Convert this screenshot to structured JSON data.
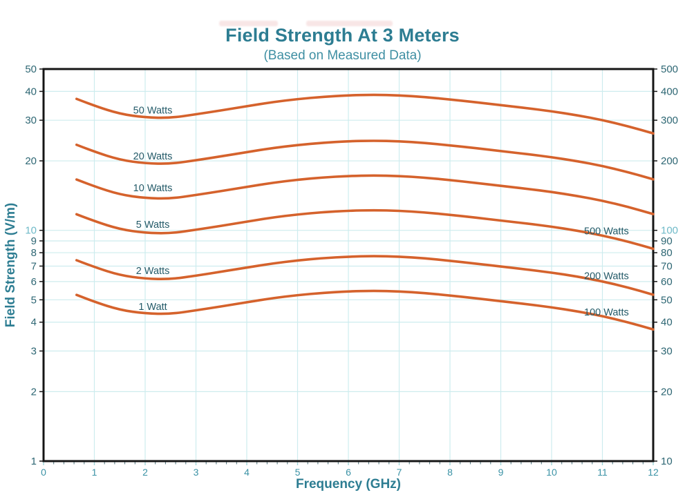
{
  "chart_data": {
    "type": "line",
    "title": "Field Strength At 3 Meters",
    "subtitle": "(Based on Measured Data)",
    "xlabel": "Frequency (GHz)",
    "ylabel": "Field Strength (V/m)",
    "legend_position": "inline-curve-labels",
    "grid": true,
    "x_axis": {
      "min": 0,
      "max": 12,
      "major_ticks": [
        0,
        1,
        2,
        3,
        4,
        5,
        6,
        7,
        8,
        9,
        10,
        11,
        12
      ],
      "minor_tick_step": 0.2
    },
    "y_axis_left": {
      "scale": "log",
      "min": 1,
      "max": 50,
      "ticks": [
        50,
        40,
        30,
        20,
        10,
        9,
        8,
        7,
        6,
        5,
        4,
        3,
        2,
        1
      ],
      "highlight_tick": 10
    },
    "y_axis_right": {
      "scale": "log",
      "min": 10,
      "max": 500,
      "ticks": [
        500,
        400,
        300,
        200,
        100,
        90,
        80,
        70,
        60,
        50,
        40,
        30,
        20,
        10
      ],
      "highlight_tick": 100
    },
    "gridlines": {
      "horizontal_left_values": [
        2,
        3,
        4,
        5,
        6,
        7,
        8,
        9,
        10,
        20,
        30,
        40
      ],
      "vertical_values": [
        1,
        2,
        3,
        4,
        5,
        6,
        7,
        8,
        9,
        10,
        11
      ]
    },
    "x": [
      0.65,
      1,
      1.5,
      2,
      2.5,
      3,
      3.5,
      4,
      4.5,
      5,
      5.5,
      6,
      6.5,
      7,
      7.5,
      8,
      8.5,
      9,
      9.5,
      10,
      10.5,
      11,
      11.5,
      12
    ],
    "series": [
      {
        "name": "1 Watt",
        "label": {
          "text": "1 Watt",
          "x": 2.15,
          "y": 4.67
        },
        "right_label": {
          "text": "100 Watts",
          "x": 11.08,
          "y": 4.42
        },
        "values": [
          5.25,
          4.9,
          4.52,
          4.36,
          4.34,
          4.5,
          4.68,
          4.88,
          5.08,
          5.24,
          5.36,
          5.44,
          5.47,
          5.44,
          5.35,
          5.22,
          5.08,
          4.93,
          4.79,
          4.64,
          4.46,
          4.25,
          4.0,
          3.72
        ]
      },
      {
        "name": "2 Watts",
        "label": {
          "text": "2 Watts",
          "x": 2.15,
          "y": 6.7
        },
        "right_label": {
          "text": "200 Watts",
          "x": 11.08,
          "y": 6.35
        },
        "values": [
          7.42,
          6.93,
          6.39,
          6.17,
          6.14,
          6.36,
          6.62,
          6.9,
          7.18,
          7.41,
          7.58,
          7.69,
          7.74,
          7.69,
          7.57,
          7.38,
          7.18,
          6.97,
          6.77,
          6.56,
          6.31,
          6.01,
          5.66,
          5.26
        ]
      },
      {
        "name": "5 Watts",
        "label": {
          "text": "5 Watts",
          "x": 2.15,
          "y": 10.6
        },
        "right_label": {
          "text": "500 Watts",
          "x": 11.08,
          "y": 9.93
        },
        "values": [
          11.74,
          10.96,
          10.11,
          9.75,
          9.7,
          10.06,
          10.46,
          10.91,
          11.36,
          11.72,
          11.99,
          12.16,
          12.23,
          12.16,
          11.96,
          11.67,
          11.36,
          11.02,
          10.71,
          10.38,
          9.97,
          9.5,
          8.94,
          8.32
        ]
      },
      {
        "name": "10 Watts",
        "label": {
          "text": "10 Watts",
          "x": 2.15,
          "y": 15.3
        },
        "values": [
          16.6,
          15.5,
          14.29,
          13.79,
          13.72,
          14.23,
          14.8,
          15.43,
          16.06,
          16.57,
          16.95,
          17.2,
          17.3,
          17.2,
          16.92,
          16.51,
          16.06,
          15.59,
          15.15,
          14.67,
          14.1,
          13.44,
          12.65,
          11.76
        ]
      },
      {
        "name": "20 Watts",
        "label": {
          "text": "20 Watts",
          "x": 2.15,
          "y": 21.0
        },
        "values": [
          23.48,
          21.91,
          20.21,
          19.5,
          19.41,
          20.12,
          20.93,
          21.82,
          22.72,
          23.43,
          23.97,
          24.33,
          24.46,
          24.33,
          23.93,
          23.34,
          22.72,
          22.05,
          21.42,
          20.75,
          19.95,
          19.01,
          17.89,
          16.64
        ]
      },
      {
        "name": "50 Watts",
        "label": {
          "text": "50 Watts",
          "x": 2.15,
          "y": 33.2
        },
        "values": [
          37.12,
          34.65,
          31.96,
          30.83,
          30.69,
          31.82,
          33.09,
          34.51,
          35.92,
          37.05,
          37.9,
          38.47,
          38.68,
          38.47,
          37.83,
          36.91,
          35.92,
          34.86,
          33.87,
          32.81,
          31.54,
          30.05,
          28.28,
          26.3
        ]
      }
    ],
    "colors": {
      "curve": "#d5622c",
      "grid": "#cdecee",
      "border": "#151515",
      "title": "#2d7d92",
      "subtitle": "#3f8fa3",
      "tick_dark": "#2d6673",
      "tick_light": "#6fbac8",
      "x_tick_label": "#3a92a5",
      "series_label": "#235a68"
    }
  }
}
